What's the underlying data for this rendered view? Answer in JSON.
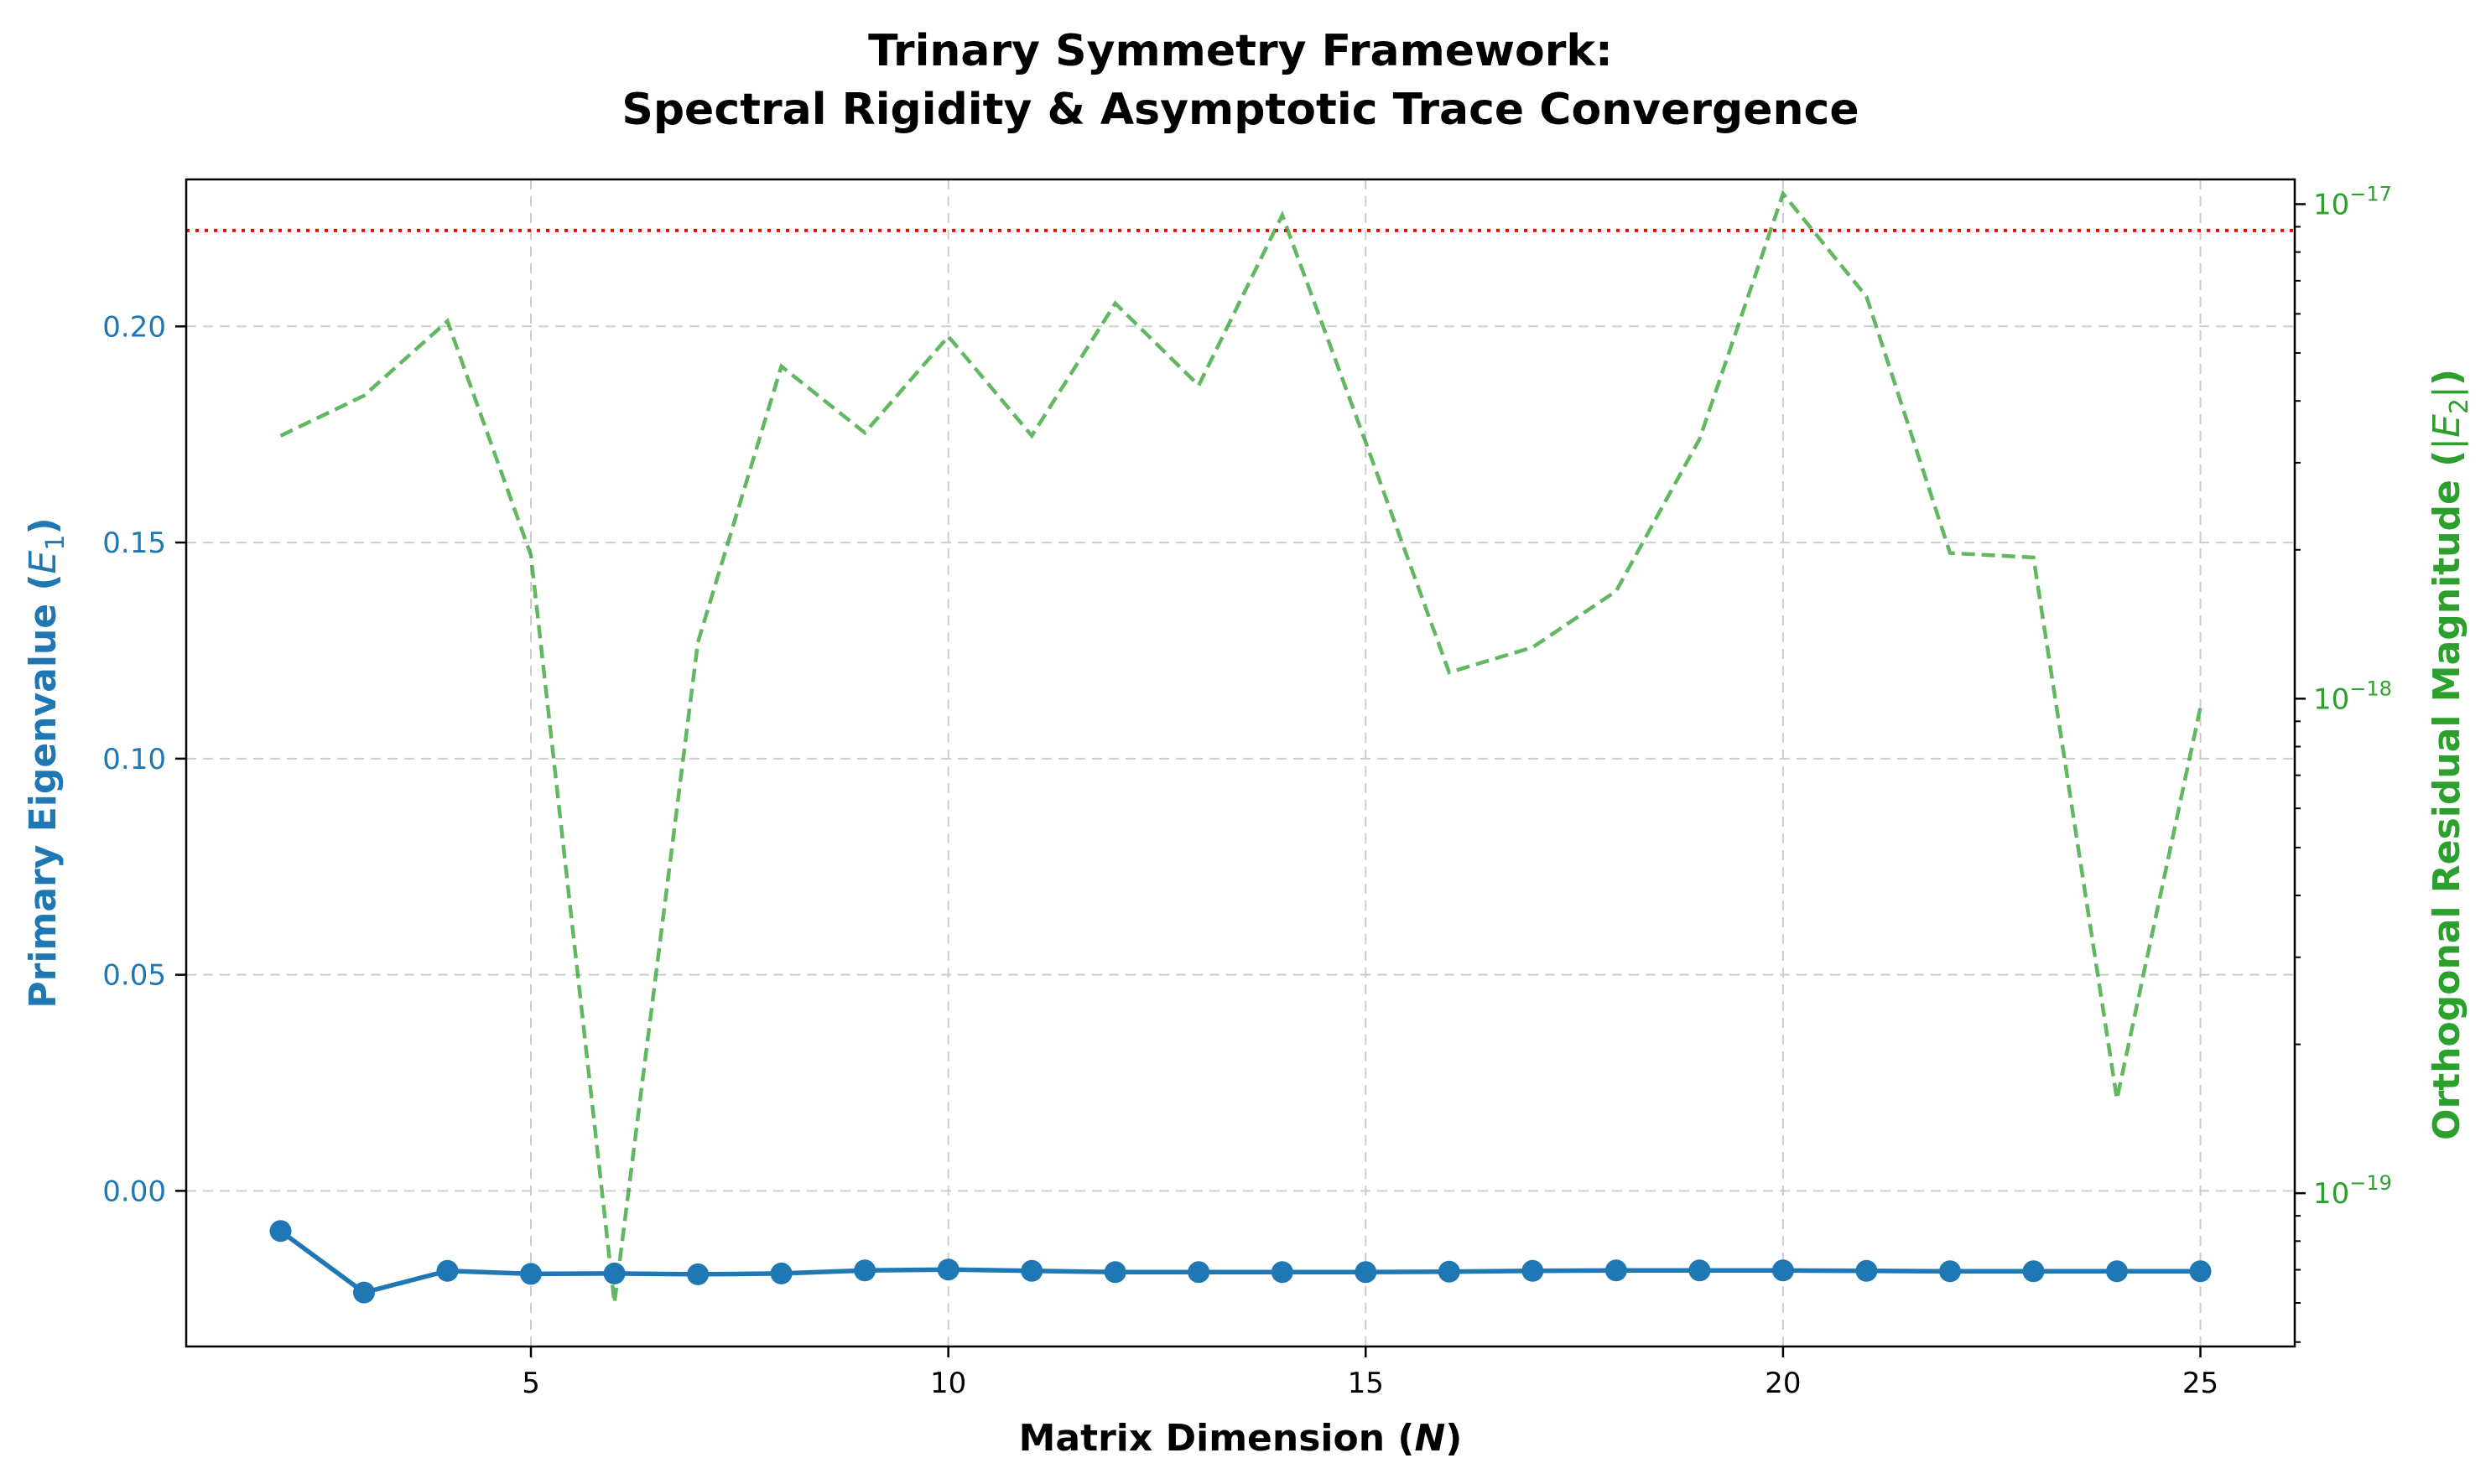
{
  "chart_data": {
    "type": "line",
    "title_line1": "Trinary Symmetry Framework:",
    "title_line2": "Spectral Rigidity & Asymptotic Trace Convergence",
    "xlabel": "Matrix Dimension (N)",
    "ylabel_left": "Primary Eigenvalue (E1)",
    "ylabel_right": "Orthogonal Residual Magnitude (|E2|)",
    "xlim": [
      0.87,
      26.13
    ],
    "x_ticks": [
      5,
      10,
      15,
      20,
      25
    ],
    "x_tick_labels": [
      "5",
      "10",
      "15",
      "20",
      "25"
    ],
    "ylim_left": [
      -0.036,
      0.234
    ],
    "y_left_ticks": [
      0.0,
      0.05,
      0.1,
      0.15,
      0.2
    ],
    "y_left_tick_labels": [
      "0.00",
      "0.05",
      "0.10",
      "0.15",
      "0.20"
    ],
    "ylim_right_log10": [
      -19.31,
      -16.95
    ],
    "y_right_ticks_log10": [
      -19,
      -18,
      -17
    ],
    "y_right_tick_labels": [
      "-19",
      "-18",
      "-17"
    ],
    "grid": true,
    "reference_line": {
      "axis": "left",
      "y": 0.2222
    },
    "series": [
      {
        "axis": "left",
        "style": "solid-markers",
        "x": [
          2,
          3,
          4,
          5,
          6,
          7,
          8,
          9,
          10,
          11,
          12,
          13,
          14,
          15,
          16,
          17,
          18,
          19,
          20,
          21,
          22,
          23,
          24,
          25
        ],
        "values": [
          -0.0093,
          -0.0235,
          -0.0185,
          -0.0192,
          -0.0191,
          -0.0193,
          -0.0191,
          -0.0184,
          -0.0182,
          -0.0185,
          -0.0188,
          -0.0188,
          -0.0188,
          -0.0188,
          -0.0187,
          -0.0185,
          -0.0184,
          -0.0184,
          -0.0184,
          -0.0185,
          -0.0186,
          -0.0186,
          -0.0186,
          -0.0186
        ]
      },
      {
        "axis": "right",
        "style": "dashed",
        "x": [
          2,
          3,
          4,
          5,
          6,
          7,
          8,
          9,
          10,
          11,
          12,
          13,
          14,
          15,
          16,
          17,
          18,
          19,
          20,
          21,
          22,
          23,
          24,
          25
        ],
        "values": [
          3.4e-18,
          4.1e-18,
          5.8e-18,
          1.95e-18,
          6e-20,
          1.3e-18,
          4.7e-18,
          3.45e-18,
          5.4e-18,
          3.4e-18,
          6.3e-18,
          4.3e-18,
          9.5e-18,
          3.3e-18,
          1.13e-18,
          1.27e-18,
          1.65e-18,
          3.35e-18,
          1.05e-17,
          6.5e-18,
          1.97e-18,
          1.93e-18,
          1.55e-19,
          9.6e-19
        ]
      }
    ],
    "colors": {
      "left": "#1f77b4",
      "right": "#2ca02c",
      "reference": "#ff0000",
      "grid": "#cccccc",
      "axes": "#000000"
    }
  }
}
